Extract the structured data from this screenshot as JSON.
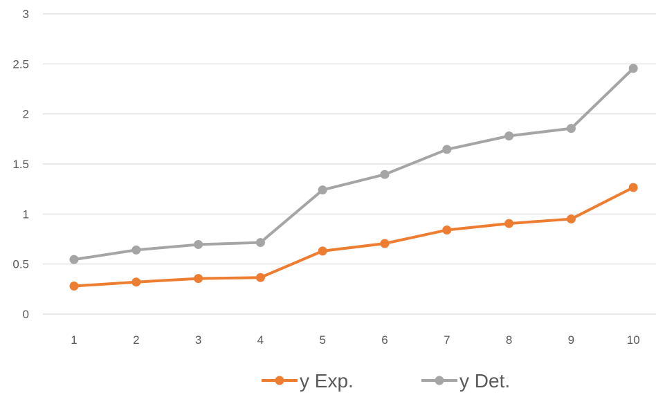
{
  "chart_data": {
    "type": "line",
    "title": "",
    "xlabel": "",
    "ylabel": "",
    "categories": [
      "1",
      "2",
      "3",
      "4",
      "5",
      "6",
      "7",
      "8",
      "9",
      "10"
    ],
    "ylim": [
      0,
      3
    ],
    "y_ticks": [
      "0",
      "0.5",
      "1",
      "1.5",
      "2",
      "2.5",
      "3"
    ],
    "grid": true,
    "legend_position": "bottom",
    "series": [
      {
        "name": "y Exp.",
        "color": "#ED7D31",
        "values": [
          0.28,
          0.32,
          0.355,
          0.365,
          0.63,
          0.705,
          0.84,
          0.905,
          0.95,
          1.265
        ]
      },
      {
        "name": "y Det.",
        "color": "#A5A5A5",
        "values": [
          0.545,
          0.64,
          0.695,
          0.715,
          1.24,
          1.395,
          1.645,
          1.78,
          1.855,
          2.455
        ]
      }
    ]
  }
}
